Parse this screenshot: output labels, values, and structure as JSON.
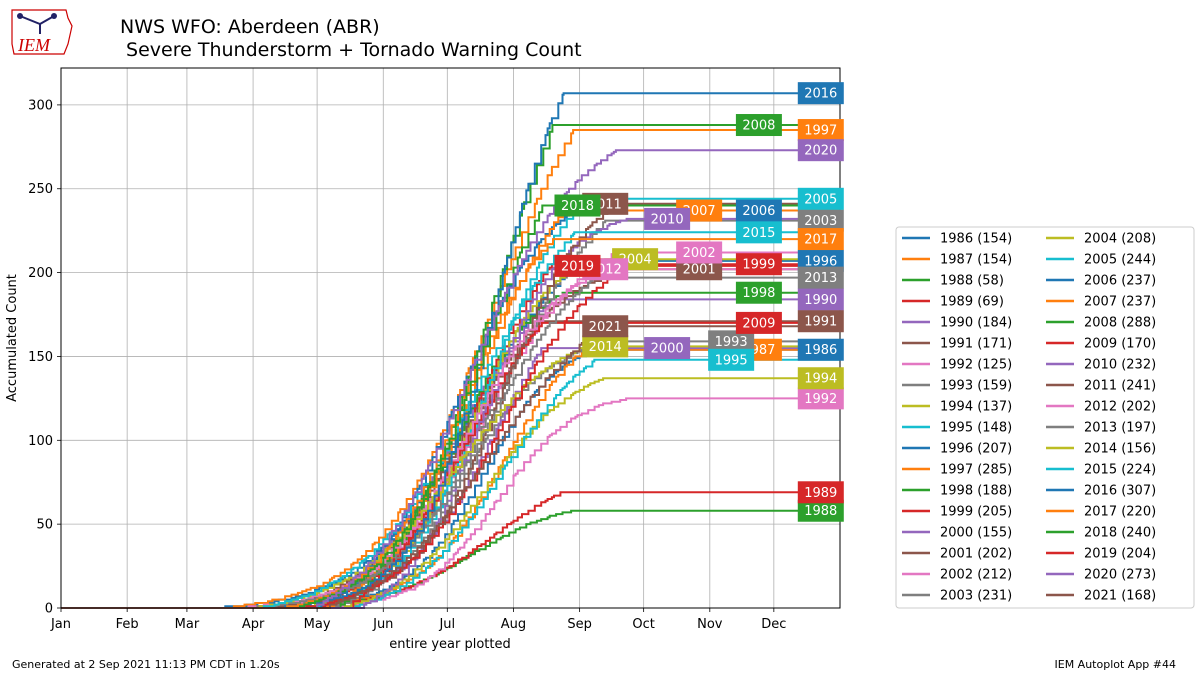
{
  "header": {
    "title_line1": "NWS WFO: Aberdeen (ABR)",
    "title_line2": " Severe Thunderstorm + Tornado Warning Count",
    "logo_text": "IEM"
  },
  "footer": {
    "generated": "Generated at 2 Sep 2021 11:13 PM CDT in 1.20s",
    "app": "IEM Autoplot App #44"
  },
  "chart_data": {
    "type": "line",
    "xlabel": "entire year plotted",
    "ylabel": "Accumulated Count",
    "xlim": [
      1,
      366
    ],
    "ylim": [
      0,
      322
    ],
    "grid": true,
    "legend_position": "right",
    "x_ticks": [
      {
        "label": "Jan",
        "day": 1
      },
      {
        "label": "Feb",
        "day": 32
      },
      {
        "label": "Mar",
        "day": 60
      },
      {
        "label": "Apr",
        "day": 91
      },
      {
        "label": "May",
        "day": 121
      },
      {
        "label": "Jun",
        "day": 152
      },
      {
        "label": "Jul",
        "day": 182
      },
      {
        "label": "Aug",
        "day": 213
      },
      {
        "label": "Sep",
        "day": 244
      },
      {
        "label": "Oct",
        "day": 274
      },
      {
        "label": "Nov",
        "day": 305
      },
      {
        "label": "Dec",
        "day": 335
      }
    ],
    "y_ticks": [
      0,
      50,
      100,
      150,
      200,
      250,
      300
    ],
    "series": [
      {
        "name": "1986 (154)",
        "year": "1986",
        "total": 154,
        "color": "#1f77b4",
        "label_day": 357,
        "label_value": 154
      },
      {
        "name": "1987 (154)",
        "year": "1987",
        "total": 154,
        "color": "#ff7f0e",
        "label_day": 328,
        "label_value": 154
      },
      {
        "name": "1988 (58)",
        "year": "1988",
        "total": 58,
        "color": "#2ca02c",
        "label_day": 357,
        "label_value": 58
      },
      {
        "name": "1989 (69)",
        "year": "1989",
        "total": 69,
        "color": "#d62728",
        "label_day": 357,
        "label_value": 69
      },
      {
        "name": "1990 (184)",
        "year": "1990",
        "total": 184,
        "color": "#9467bd",
        "label_day": 357,
        "label_value": 184
      },
      {
        "name": "1991 (171)",
        "year": "1991",
        "total": 171,
        "color": "#8c564b",
        "label_day": 357,
        "label_value": 171
      },
      {
        "name": "1992 (125)",
        "year": "1992",
        "total": 125,
        "color": "#e377c2",
        "label_day": 357,
        "label_value": 125
      },
      {
        "name": "1993 (159)",
        "year": "1993",
        "total": 159,
        "color": "#7f7f7f",
        "label_day": 315,
        "label_value": 159
      },
      {
        "name": "1994 (137)",
        "year": "1994",
        "total": 137,
        "color": "#bcbd22",
        "label_day": 357,
        "label_value": 137
      },
      {
        "name": "1995 (148)",
        "year": "1995",
        "total": 148,
        "color": "#17becf",
        "label_day": 315,
        "label_value": 148
      },
      {
        "name": "1996 (207)",
        "year": "1996",
        "total": 207,
        "color": "#1f77b4",
        "label_day": 357,
        "label_value": 207
      },
      {
        "name": "1997 (285)",
        "year": "1997",
        "total": 285,
        "color": "#ff7f0e",
        "label_day": 357,
        "label_value": 285
      },
      {
        "name": "1998 (188)",
        "year": "1998",
        "total": 188,
        "color": "#2ca02c",
        "label_day": 328,
        "label_value": 188
      },
      {
        "name": "1999 (205)",
        "year": "1999",
        "total": 205,
        "color": "#d62728",
        "label_day": 328,
        "label_value": 205
      },
      {
        "name": "2000 (155)",
        "year": "2000",
        "total": 155,
        "color": "#9467bd",
        "label_day": 285,
        "label_value": 155
      },
      {
        "name": "2001 (202)",
        "year": "2001",
        "total": 202,
        "color": "#8c564b",
        "label_day": 300,
        "label_value": 202
      },
      {
        "name": "2002 (212)",
        "year": "2002",
        "total": 212,
        "color": "#e377c2",
        "label_day": 300,
        "label_value": 212
      },
      {
        "name": "2003 (231)",
        "year": "2003",
        "total": 231,
        "color": "#7f7f7f",
        "label_day": 357,
        "label_value": 231
      },
      {
        "name": "2004 (208)",
        "year": "2004",
        "total": 208,
        "color": "#bcbd22",
        "label_day": 270,
        "label_value": 208
      },
      {
        "name": "2005 (244)",
        "year": "2005",
        "total": 244,
        "color": "#17becf",
        "label_day": 357,
        "label_value": 244
      },
      {
        "name": "2006 (237)",
        "year": "2006",
        "total": 237,
        "color": "#1f77b4",
        "label_day": 328,
        "label_value": 237
      },
      {
        "name": "2007 (237)",
        "year": "2007",
        "total": 237,
        "color": "#ff7f0e",
        "label_day": 300,
        "label_value": 237
      },
      {
        "name": "2008 (288)",
        "year": "2008",
        "total": 288,
        "color": "#2ca02c",
        "label_day": 328,
        "label_value": 288
      },
      {
        "name": "2009 (170)",
        "year": "2009",
        "total": 170,
        "color": "#d62728",
        "label_day": 328,
        "label_value": 170
      },
      {
        "name": "2010 (232)",
        "year": "2010",
        "total": 232,
        "color": "#9467bd",
        "label_day": 285,
        "label_value": 232
      },
      {
        "name": "2011 (241)",
        "year": "2011",
        "total": 241,
        "color": "#8c564b",
        "label_day": 256,
        "label_value": 241
      },
      {
        "name": "2012 (202)",
        "year": "2012",
        "total": 202,
        "color": "#e377c2",
        "label_day": 256,
        "label_value": 202
      },
      {
        "name": "2013 (197)",
        "year": "2013",
        "total": 197,
        "color": "#7f7f7f",
        "label_day": 357,
        "label_value": 197
      },
      {
        "name": "2014 (156)",
        "year": "2014",
        "total": 156,
        "color": "#bcbd22",
        "label_day": 256,
        "label_value": 156
      },
      {
        "name": "2015 (224)",
        "year": "2015",
        "total": 224,
        "color": "#17becf",
        "label_day": 328,
        "label_value": 224
      },
      {
        "name": "2016 (307)",
        "year": "2016",
        "total": 307,
        "color": "#1f77b4",
        "label_day": 357,
        "label_value": 307
      },
      {
        "name": "2017 (220)",
        "year": "2017",
        "total": 220,
        "color": "#ff7f0e",
        "label_day": 357,
        "label_value": 220
      },
      {
        "name": "2018 (240)",
        "year": "2018",
        "total": 240,
        "color": "#2ca02c",
        "label_day": 243,
        "label_value": 240
      },
      {
        "name": "2019 (204)",
        "year": "2019",
        "total": 204,
        "color": "#d62728",
        "label_day": 243,
        "label_value": 204
      },
      {
        "name": "2020 (273)",
        "year": "2020",
        "total": 273,
        "color": "#9467bd",
        "label_day": 357,
        "label_value": 273
      },
      {
        "name": "2021 (168)",
        "year": "2021",
        "total": 168,
        "color": "#8c564b",
        "label_day": 256,
        "label_value": 168
      }
    ]
  }
}
